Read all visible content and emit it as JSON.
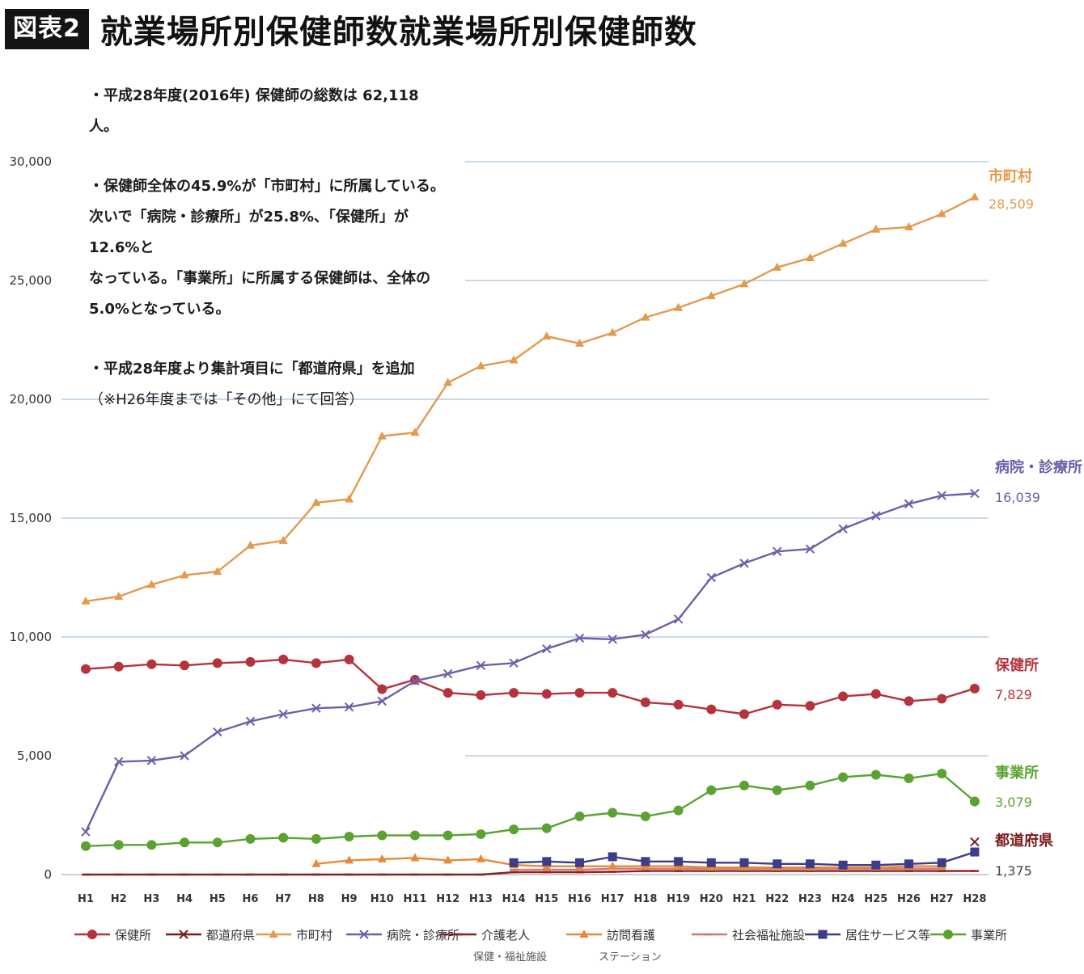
{
  "header": {
    "badge": "図表2",
    "title": "就業場所別保健師数就業場所別保健師数"
  },
  "notes": {
    "line1": "・平成28年度(2016年) 保健師の総数は 62,118人。",
    "line2a": "・保健師全体の45.9%が「市町村」に所属している。",
    "line2b": "次いで「病院・診療所」が25.8%、「保健所」が12.6%と",
    "line2c": "なっている。「事業所」に所属する保健師は、全体の",
    "line2d": "5.0%となっている。",
    "line3a": "・平成28年度より集計項目に「都道府県」を追加",
    "line3b": "（※H26年度までは「その他」にて回答）"
  },
  "chart_data": {
    "type": "line",
    "ylim": [
      0,
      30000
    ],
    "yticks": [
      "0",
      "5,000",
      "10,000",
      "15,000",
      "20,000",
      "25,000",
      "30,000"
    ],
    "categories": [
      "H1",
      "H2",
      "H3",
      "H4",
      "H5",
      "H6",
      "H7",
      "H8",
      "H9",
      "H10",
      "H11",
      "H12",
      "H13",
      "H14",
      "H15",
      "H16",
      "H17",
      "H18",
      "H19",
      "H20",
      "H21",
      "H22",
      "H23",
      "H24",
      "H25",
      "H26",
      "H27",
      "H28"
    ],
    "series": [
      {
        "key": "hokenjo",
        "name": "保健所",
        "color": "#b5333c",
        "marker": "circle",
        "values": [
          8650,
          8750,
          8850,
          8800,
          8900,
          8950,
          9050,
          8900,
          9050,
          7800,
          8200,
          7650,
          7550,
          7650,
          7600,
          7650,
          7650,
          7250,
          7150,
          6950,
          6750,
          7150,
          7100,
          7500,
          7600,
          7300,
          7400,
          7829
        ],
        "endLabel": "保健所",
        "endValue": "7,829"
      },
      {
        "key": "todofuken",
        "name": "都道府県",
        "color": "#7a1a1a",
        "marker": "x",
        "values": [
          null,
          null,
          null,
          null,
          null,
          null,
          null,
          null,
          null,
          null,
          null,
          null,
          null,
          null,
          null,
          null,
          null,
          null,
          null,
          null,
          null,
          null,
          null,
          null,
          null,
          null,
          null,
          1375
        ],
        "endLabel": "都道府県",
        "endValue": "1,375"
      },
      {
        "key": "shichoson",
        "name": "市町村",
        "color": "#e39a4e",
        "marker": "triangle",
        "values": [
          11500,
          11700,
          12200,
          12600,
          12750,
          13850,
          14050,
          15650,
          15800,
          18450,
          18600,
          20700,
          21400,
          21650,
          22650,
          22350,
          22800,
          23450,
          23850,
          24350,
          24850,
          25550,
          25950,
          26550,
          27150,
          27250,
          27800,
          28509
        ],
        "endLabel": "市町村",
        "endValue": "28,509"
      },
      {
        "key": "byoin",
        "name": "病院・診療所",
        "color": "#6f5fa8",
        "marker": "x",
        "values": [
          1800,
          4750,
          4800,
          5000,
          6000,
          6450,
          6750,
          7000,
          7050,
          7300,
          8150,
          8450,
          8800,
          8900,
          9500,
          9950,
          9900,
          10100,
          10750,
          12500,
          13100,
          13600,
          13700,
          14550,
          15100,
          15600,
          15950,
          16039
        ],
        "endLabel": "病院・診療所",
        "endValue": "16,039"
      },
      {
        "key": "kaigo",
        "name": "介護老人保健・福祉施設",
        "color": "#8c2020",
        "marker": "dash",
        "values": [
          0,
          0,
          0,
          0,
          0,
          0,
          0,
          0,
          0,
          0,
          0,
          0,
          0,
          100,
          100,
          100,
          120,
          150,
          150,
          150,
          150,
          150,
          150,
          150,
          150,
          150,
          150,
          150
        ],
        "endLabel": "",
        "endValue": ""
      },
      {
        "key": "homon",
        "name": "訪問看護ステーション",
        "color": "#e8893a",
        "marker": "triangle",
        "values": [
          null,
          null,
          null,
          null,
          null,
          null,
          null,
          450,
          600,
          650,
          700,
          600,
          650,
          400,
          350,
          350,
          350,
          350,
          350,
          300,
          300,
          300,
          300,
          300,
          300,
          350,
          350,
          null
        ],
        "endLabel": "",
        "endValue": ""
      },
      {
        "key": "shakai",
        "name": "社会福祉施設",
        "color": "#d4776e",
        "marker": "dash",
        "values": [
          null,
          null,
          null,
          null,
          null,
          null,
          null,
          null,
          null,
          null,
          null,
          null,
          null,
          200,
          200,
          200,
          250,
          250,
          250,
          250,
          250,
          250,
          250,
          250,
          250,
          250,
          250,
          null
        ],
        "endLabel": "",
        "endValue": ""
      },
      {
        "key": "kyotaku",
        "name": "居住サービス等",
        "color": "#3b3d8a",
        "marker": "square",
        "values": [
          null,
          null,
          null,
          null,
          null,
          null,
          null,
          null,
          null,
          null,
          null,
          null,
          null,
          500,
          550,
          500,
          750,
          550,
          550,
          500,
          500,
          450,
          450,
          400,
          400,
          450,
          500,
          950
        ],
        "endLabel": "",
        "endValue": ""
      },
      {
        "key": "jigyosho",
        "name": "事業所",
        "color": "#5aa332",
        "marker": "circle",
        "values": [
          1200,
          1250,
          1250,
          1350,
          1350,
          1500,
          1550,
          1500,
          1600,
          1650,
          1650,
          1650,
          1700,
          1900,
          1950,
          2450,
          2600,
          2450,
          2700,
          3550,
          3750,
          3550,
          3750,
          4100,
          4200,
          4050,
          4250,
          3079
        ],
        "endLabel": "事業所",
        "endValue": "3,079"
      }
    ],
    "legend": [
      {
        "key": "hokenjo",
        "line1": "保健所",
        "line2": ""
      },
      {
        "key": "todofuken",
        "line1": "都道府県",
        "line2": ""
      },
      {
        "key": "shichoson",
        "line1": "市町村",
        "line2": ""
      },
      {
        "key": "byoin",
        "line1": "病院・診療所",
        "line2": ""
      },
      {
        "key": "kaigo",
        "line1": "介護老人",
        "line2": "保健・福祉施設"
      },
      {
        "key": "homon",
        "line1": "訪問看護",
        "line2": "ステーション"
      },
      {
        "key": "shakai",
        "line1": "社会福祉施設",
        "line2": ""
      },
      {
        "key": "kyotaku",
        "line1": "居住サービス等",
        "line2": ""
      },
      {
        "key": "jigyosho",
        "line1": "事業所",
        "line2": ""
      }
    ],
    "legend_position": "bottom",
    "grid": true
  }
}
